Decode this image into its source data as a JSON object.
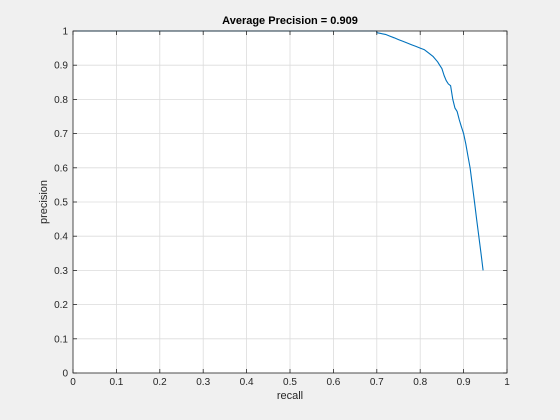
{
  "chart_data": {
    "type": "line",
    "title": "Average Precision = 0.909",
    "xlabel": "recall",
    "ylabel": "precision",
    "xlim": [
      0,
      1
    ],
    "ylim": [
      0,
      1
    ],
    "xticks": [
      "0",
      "0.1",
      "0.2",
      "0.3",
      "0.4",
      "0.5",
      "0.6",
      "0.7",
      "0.8",
      "0.9",
      "1"
    ],
    "yticks": [
      "0",
      "0.1",
      "0.2",
      "0.3",
      "0.4",
      "0.5",
      "0.6",
      "0.7",
      "0.8",
      "0.9",
      "1"
    ],
    "grid": true,
    "series": [
      {
        "color": "#0072bd",
        "x": [
          0.0,
          0.7,
          0.7,
          0.72,
          0.73,
          0.74,
          0.75,
          0.76,
          0.77,
          0.78,
          0.79,
          0.8,
          0.81,
          0.82,
          0.83,
          0.84,
          0.845,
          0.85,
          0.855,
          0.86,
          0.865,
          0.87,
          0.875,
          0.88,
          0.885,
          0.89,
          0.895,
          0.9,
          0.905,
          0.91,
          0.915,
          0.92,
          0.925,
          0.93,
          0.935,
          0.94,
          0.945
        ],
        "y": [
          1.0,
          1.0,
          0.995,
          0.99,
          0.985,
          0.98,
          0.975,
          0.97,
          0.965,
          0.96,
          0.955,
          0.95,
          0.945,
          0.935,
          0.925,
          0.91,
          0.9,
          0.89,
          0.87,
          0.855,
          0.845,
          0.84,
          0.8,
          0.775,
          0.765,
          0.74,
          0.72,
          0.7,
          0.67,
          0.635,
          0.6,
          0.55,
          0.5,
          0.45,
          0.4,
          0.35,
          0.3
        ]
      }
    ]
  }
}
